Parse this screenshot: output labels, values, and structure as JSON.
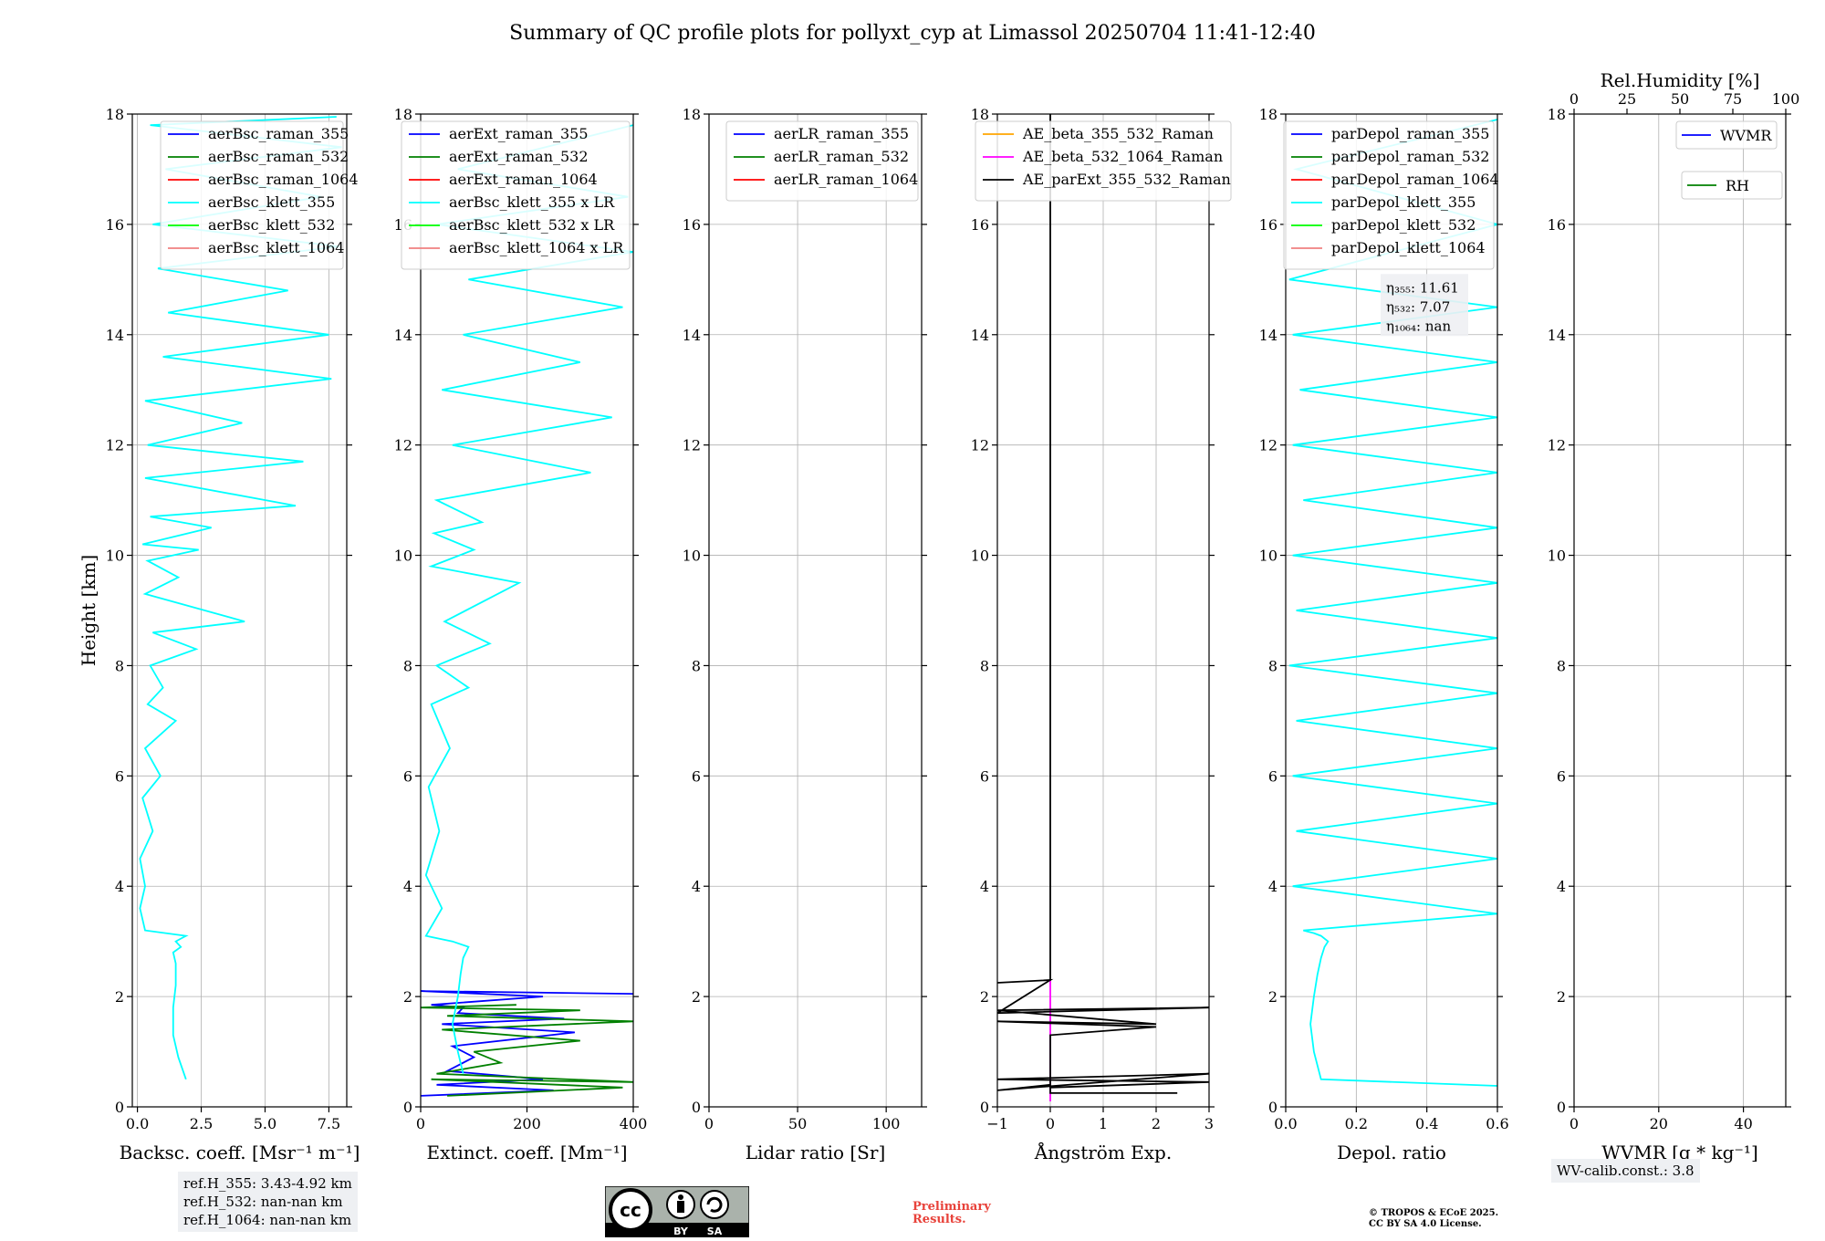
{
  "title": "Summary of QC profile plots for pollyxt_cyp at Limassol 20250704 11:41-12:40",
  "chart_data": [
    {
      "type": "line",
      "xlabel": "Backsc. coeff. [Msr⁻¹ m⁻¹]",
      "ylabel": "Height [km]",
      "xlim": [
        -0.2,
        8.2
      ],
      "ylim": [
        0,
        18
      ],
      "xticks": [
        0,
        2.5,
        5,
        7.5
      ],
      "xticklabels": [
        "0.0",
        "2.5",
        "5.0",
        "7.5"
      ],
      "yticks": [
        0,
        2,
        4,
        6,
        8,
        10,
        12,
        14,
        16,
        18
      ],
      "grid": true,
      "legend_position": "top-right",
      "series": [
        {
          "name": "aerBsc_raman_355",
          "color": "#0000ff",
          "x": [],
          "y": []
        },
        {
          "name": "aerBsc_raman_532",
          "color": "#008000",
          "x": [],
          "y": []
        },
        {
          "name": "aerBsc_raman_1064",
          "color": "#ff0000",
          "x": [],
          "y": []
        },
        {
          "name": "aerBsc_klett_355",
          "color": "#00ffff",
          "x": [
            1.9,
            1.6,
            1.4,
            1.4,
            1.5,
            1.5,
            1.4,
            1.7,
            1.5,
            1.7,
            1.9,
            0.3,
            0.1,
            0.3,
            0.1,
            0.6,
            0.2,
            0.9,
            0.3,
            1.5,
            0.4,
            1.0,
            0.5,
            2.3,
            0.6,
            4.2,
            0.3,
            1.6,
            0.4,
            2.4,
            0.2,
            2.9,
            0.5,
            6.2,
            0.3,
            6.5,
            0.4,
            4.1,
            0.3,
            7.6,
            1.0,
            7.5,
            1.2,
            5.9,
            0.8,
            7.9,
            0.6,
            7.2,
            1.1,
            8.0,
            0.5,
            7.8
          ],
          "y": [
            0.5,
            0.9,
            1.3,
            1.8,
            2.2,
            2.6,
            2.8,
            2.9,
            3.0,
            3.05,
            3.1,
            3.2,
            3.6,
            4.0,
            4.5,
            5.0,
            5.6,
            6.0,
            6.5,
            7.0,
            7.3,
            7.6,
            8.0,
            8.3,
            8.6,
            8.8,
            9.3,
            9.6,
            9.9,
            10.1,
            10.2,
            10.5,
            10.7,
            10.9,
            11.4,
            11.7,
            12.0,
            12.4,
            12.8,
            13.2,
            13.6,
            14.0,
            14.4,
            14.8,
            15.2,
            15.6,
            16.0,
            16.5,
            17.0,
            17.4,
            17.8,
            17.95
          ]
        },
        {
          "name": "aerBsc_klett_532",
          "color": "#00ff00",
          "x": [],
          "y": []
        },
        {
          "name": "aerBsc_klett_1064",
          "color": "#f08080",
          "x": [],
          "y": []
        }
      ]
    },
    {
      "type": "line",
      "xlabel": "Extinct. coeff. [Mm⁻¹]",
      "xlim": [
        0,
        400
      ],
      "ylim": [
        0,
        18
      ],
      "xticks": [
        0,
        200,
        400
      ],
      "xticklabels": [
        "0",
        "200",
        "400"
      ],
      "yticks": [
        0,
        2,
        4,
        6,
        8,
        10,
        12,
        14,
        16,
        18
      ],
      "grid": true,
      "legend_position": "top-right",
      "series": [
        {
          "name": "aerExt_raman_355",
          "color": "#0000ff",
          "x": [
            0,
            250,
            30,
            230,
            50,
            100,
            60,
            290,
            40,
            270,
            70,
            80,
            20,
            230,
            0,
            400
          ],
          "y": [
            0.2,
            0.3,
            0.4,
            0.5,
            0.65,
            0.9,
            1.1,
            1.35,
            1.5,
            1.6,
            1.7,
            1.8,
            1.85,
            2.0,
            2.1,
            2.05
          ]
        },
        {
          "name": "aerExt_raman_532",
          "color": "#008000",
          "x": [
            50,
            380,
            20,
            400,
            30,
            150,
            100,
            300,
            40,
            400,
            50,
            300,
            0,
            180
          ],
          "y": [
            0.2,
            0.35,
            0.5,
            0.45,
            0.6,
            0.8,
            1.0,
            1.2,
            1.4,
            1.55,
            1.65,
            1.75,
            1.8,
            1.85
          ]
        },
        {
          "name": "aerExt_raman_1064",
          "color": "#ff0000",
          "x": [],
          "y": []
        },
        {
          "name": "aerBsc_klett_355 x LR",
          "color": "#00ffff",
          "x": [
            80,
            70,
            60,
            70,
            75,
            80,
            90,
            60,
            10,
            40,
            10,
            35,
            15,
            55,
            20,
            90,
            30,
            130,
            45,
            185,
            20,
            100,
            25,
            115,
            30,
            320,
            60,
            360,
            40,
            300,
            80,
            380,
            90,
            400,
            30,
            390,
            70,
            400
          ],
          "y": [
            0.6,
            1.0,
            1.5,
            2.0,
            2.4,
            2.7,
            2.9,
            3.0,
            3.1,
            3.6,
            4.2,
            5.0,
            5.8,
            6.5,
            7.3,
            7.6,
            8.0,
            8.4,
            8.8,
            9.5,
            9.8,
            10.1,
            10.4,
            10.6,
            11.0,
            11.5,
            12.0,
            12.5,
            13.0,
            13.5,
            14.0,
            14.5,
            15.0,
            15.5,
            16.0,
            16.5,
            17.0,
            17.8
          ]
        },
        {
          "name": "aerBsc_klett_532 x LR",
          "color": "#00ff00",
          "x": [],
          "y": []
        },
        {
          "name": "aerBsc_klett_1064 x LR",
          "color": "#f08080",
          "x": [],
          "y": []
        }
      ]
    },
    {
      "type": "line",
      "xlabel": "Lidar ratio [Sr]",
      "xlim": [
        0,
        120
      ],
      "ylim": [
        0,
        18
      ],
      "xticks": [
        0,
        50,
        100
      ],
      "xticklabels": [
        "0",
        "50",
        "100"
      ],
      "yticks": [
        0,
        2,
        4,
        6,
        8,
        10,
        12,
        14,
        16,
        18
      ],
      "grid": true,
      "legend_position": "top-right",
      "series": [
        {
          "name": "aerLR_raman_355",
          "color": "#0000ff",
          "x": [],
          "y": []
        },
        {
          "name": "aerLR_raman_532",
          "color": "#008000",
          "x": [],
          "y": []
        },
        {
          "name": "aerLR_raman_1064",
          "color": "#ff0000",
          "x": [],
          "y": []
        }
      ]
    },
    {
      "type": "line",
      "xlabel": "Ångström Exp.",
      "xlim": [
        -1,
        3
      ],
      "ylim": [
        0,
        18
      ],
      "xticks": [
        -1,
        0,
        1,
        2,
        3
      ],
      "xticklabels": [
        "−1",
        "0",
        "1",
        "2",
        "3"
      ],
      "yticks": [
        0,
        2,
        4,
        6,
        8,
        10,
        12,
        14,
        16,
        18
      ],
      "grid": true,
      "legend_position": "top-center",
      "series": [
        {
          "name": "AE_beta_355_532_Raman",
          "color": "#ffa500",
          "x": [],
          "y": []
        },
        {
          "name": "AE_beta_532_1064_Raman",
          "color": "#ff00ff",
          "x": [
            0,
            0,
            0,
            0
          ],
          "y": [
            0.1,
            0.8,
            1.5,
            2.3
          ]
        },
        {
          "name": "AE_parExt_355_532_Raman",
          "color": "#000000",
          "x": [
            2.4,
            0,
            0,
            3,
            -1,
            3,
            -1,
            0,
            0,
            2.0,
            -1,
            2.0,
            -1,
            3,
            -1,
            0,
            0,
            -1,
            0,
            0
          ],
          "y": [
            0.25,
            0.25,
            0.35,
            0.45,
            0.5,
            0.6,
            0.3,
            0.4,
            1.3,
            1.45,
            1.55,
            1.5,
            1.75,
            1.8,
            1.7,
            2.3,
            2.3,
            2.25,
            2.3,
            18
          ]
        }
      ]
    },
    {
      "type": "line",
      "xlabel": "Depol. ratio",
      "xlim": [
        0,
        0.6
      ],
      "ylim": [
        0,
        18
      ],
      "xticks": [
        0,
        0.2,
        0.4,
        0.6
      ],
      "xticklabels": [
        "0.0",
        "0.2",
        "0.4",
        "0.6"
      ],
      "yticks": [
        0,
        2,
        4,
        6,
        8,
        10,
        12,
        14,
        16,
        18
      ],
      "grid": true,
      "legend_position": "top-right",
      "annotation": [
        "η₃₅₅: 11.61",
        "η₅₃₂: 7.07",
        "η₁₀₆₄: nan"
      ],
      "series": [
        {
          "name": "parDepol_raman_355",
          "color": "#0000ff",
          "x": [],
          "y": []
        },
        {
          "name": "parDepol_raman_532",
          "color": "#008000",
          "x": [],
          "y": []
        },
        {
          "name": "parDepol_raman_1064",
          "color": "#ff0000",
          "x": [],
          "y": []
        },
        {
          "name": "parDepol_klett_355",
          "color": "#00ffff",
          "x": [
            0.6,
            0.1,
            0.08,
            0.07,
            0.08,
            0.09,
            0.1,
            0.11,
            0.12,
            0.1,
            0.08,
            0.05,
            0.6,
            0.02,
            0.6,
            0.03,
            0.6,
            0.02,
            0.6,
            0.03,
            0.6,
            0.01,
            0.6,
            0.03,
            0.6,
            0.02,
            0.6,
            0.05,
            0.6,
            0.02,
            0.6,
            0.04,
            0.6,
            0.02,
            0.6,
            0.01,
            0.6,
            0.03,
            0.6
          ],
          "y": [
            0.38,
            0.5,
            1.0,
            1.5,
            2.0,
            2.4,
            2.7,
            2.9,
            3.0,
            3.1,
            3.15,
            3.2,
            3.5,
            4.0,
            4.5,
            5.0,
            5.5,
            6.0,
            6.5,
            7.0,
            7.5,
            8.0,
            8.5,
            9.0,
            9.5,
            10.0,
            10.5,
            11.0,
            11.5,
            12.0,
            12.5,
            13.0,
            13.5,
            14.0,
            14.5,
            15.0,
            16.0,
            17.0,
            17.9
          ]
        },
        {
          "name": "parDepol_klett_532",
          "color": "#00ff00",
          "x": [],
          "y": []
        },
        {
          "name": "parDepol_klett_1064",
          "color": "#f08080",
          "x": [],
          "y": []
        }
      ]
    },
    {
      "type": "line",
      "xlabel": "WVMR [g * kg⁻¹]",
      "top_xlabel": "Rel.Humidity [%]",
      "xlim": [
        0,
        50
      ],
      "top_xlim": [
        0,
        100
      ],
      "ylim": [
        0,
        18
      ],
      "xticks": [
        0,
        20,
        40
      ],
      "xticklabels": [
        "0",
        "20",
        "40"
      ],
      "top_xticks": [
        0,
        25,
        50,
        75,
        100
      ],
      "top_xticklabels": [
        "0",
        "25",
        "50",
        "75",
        "100"
      ],
      "yticks": [
        0,
        2,
        4,
        6,
        8,
        10,
        12,
        14,
        16,
        18
      ],
      "grid": true,
      "legend_position": "top-right",
      "series": [
        {
          "name": "WVMR",
          "color": "#0000ff",
          "x": [],
          "y": []
        },
        {
          "name": "RH",
          "color": "#008000",
          "x": [],
          "y": []
        }
      ]
    }
  ],
  "info": {
    "ref_h_355": "ref.H_355: 3.43-4.92 km",
    "ref_h_532": "ref.H_532: nan-nan km",
    "ref_h_1064": "ref.H_1064: nan-nan km",
    "wv_calib": "WV-calib.const.: 3.8",
    "preliminary_1": "Preliminary",
    "preliminary_2": "Results.",
    "copyright_1": "© TROPOS & ECoE 2025.",
    "copyright_2": "CC BY SA 4.0 License.",
    "cc_by": "BY",
    "cc_sa": "SA"
  }
}
